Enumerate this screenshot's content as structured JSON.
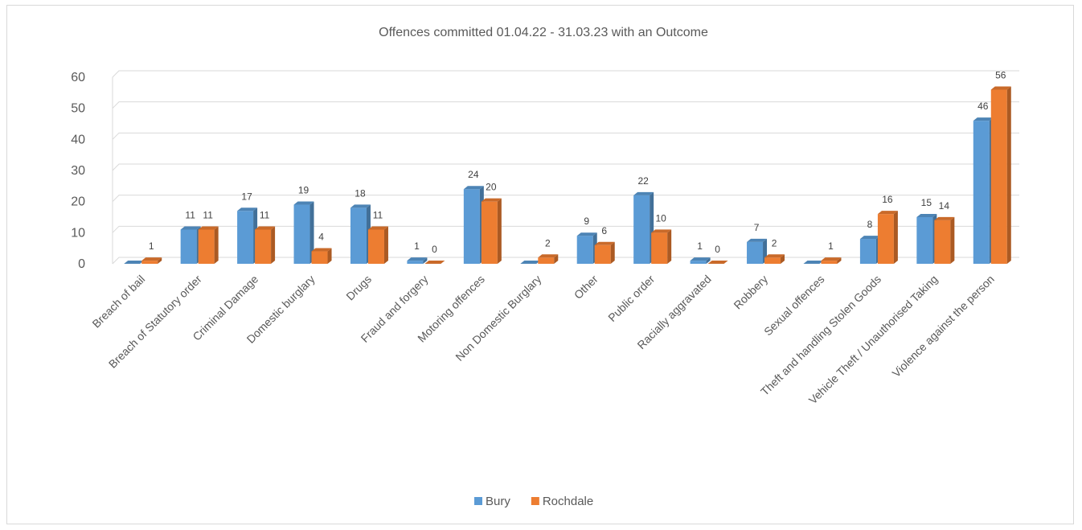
{
  "chart_data": {
    "type": "bar",
    "title": "Offences committed 01.04.22 - 31.03.23 with an Outcome",
    "xlabel": "",
    "ylabel": "",
    "ylim": [
      0,
      60
    ],
    "yticks": [
      "0",
      "10",
      "20",
      "30",
      "40",
      "50",
      "60"
    ],
    "grid": true,
    "legend_position": "bottom",
    "style": "3d-clustered-column",
    "categories": [
      "Breach of bail",
      "Breach of Statutory order",
      "Criminal Damage",
      "Domestic burglary",
      "Drugs",
      "Fraud and forgery",
      "Motoring offences",
      "Non Domestic Burglary",
      "Other",
      "Public order",
      "Racially aggravated",
      "Robbery",
      "Sexual offences",
      "Theft and handling Stolen Goods",
      "Vehicle Theft / Unauthorised Taking",
      "Violence against the person"
    ],
    "series": [
      {
        "name": "Bury",
        "color": "#5b9bd5",
        "values": [
          0,
          11,
          17,
          19,
          18,
          1,
          24,
          0,
          9,
          22,
          1,
          7,
          0,
          8,
          15,
          46
        ],
        "labels": [
          "",
          "11",
          "17",
          "19",
          "18",
          "1",
          "24",
          "",
          "9",
          "22",
          "1",
          "7",
          "",
          "8",
          "15",
          "46"
        ]
      },
      {
        "name": "Rochdale",
        "color": "#ed7d31",
        "values": [
          1,
          11,
          11,
          4,
          11,
          0,
          20,
          2,
          6,
          10,
          0,
          2,
          1,
          16,
          14,
          56
        ],
        "labels": [
          "1",
          "11",
          "11",
          "4",
          "11",
          "0",
          "20",
          "2",
          "6",
          "10",
          "0",
          "2",
          "1",
          "16",
          "14",
          "56"
        ]
      }
    ]
  }
}
